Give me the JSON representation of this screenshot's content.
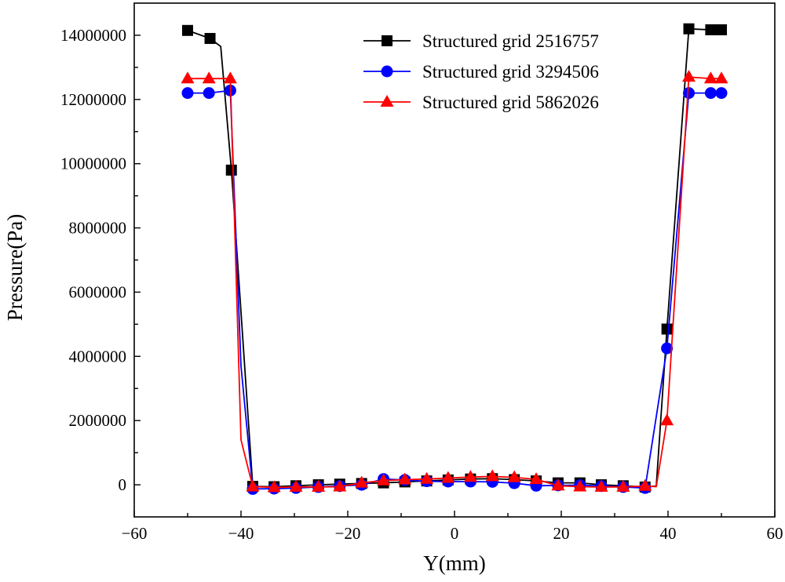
{
  "chart_data": {
    "type": "line",
    "title": "",
    "xlabel": "Y(mm)",
    "ylabel": "Pressure(Pa)",
    "xlim": [
      -60,
      60
    ],
    "ylim": [
      -1000000,
      15000000
    ],
    "xticks": [
      -60,
      -40,
      -20,
      0,
      20,
      40,
      60
    ],
    "xtick_labels": [
      "−60",
      "−40",
      "−20",
      "0",
      "20",
      "40",
      "60"
    ],
    "yticks": [
      0,
      2000000,
      4000000,
      6000000,
      8000000,
      10000000,
      12000000,
      14000000
    ],
    "ytick_labels": [
      "0",
      "2000000",
      "4000000",
      "6000000",
      "8000000",
      "10000000",
      "12000000",
      "14000000"
    ],
    "grid": false,
    "legend_position": "top-right",
    "series": [
      {
        "name": "Structured grid 2516757",
        "color": "#000000",
        "marker": "square",
        "markers": [
          {
            "x": -50,
            "y": 14150000
          },
          {
            "x": -45.8,
            "y": 13900000
          },
          {
            "x": -41.8,
            "y": 9800000
          },
          {
            "x": -37.8,
            "y": -50000
          },
          {
            "x": -33.8,
            "y": -60000
          },
          {
            "x": -29.7,
            "y": -30000
          },
          {
            "x": -25.5,
            "y": 0
          },
          {
            "x": -21.5,
            "y": 20000
          },
          {
            "x": -17.4,
            "y": 40000
          },
          {
            "x": -13.3,
            "y": 60000
          },
          {
            "x": -9.3,
            "y": 90000
          },
          {
            "x": -5.2,
            "y": 120000
          },
          {
            "x": -1.2,
            "y": 150000
          },
          {
            "x": 3,
            "y": 180000
          },
          {
            "x": 7.1,
            "y": 190000
          },
          {
            "x": 11.2,
            "y": 160000
          },
          {
            "x": 15.3,
            "y": 120000
          },
          {
            "x": 19.4,
            "y": 60000
          },
          {
            "x": 23.5,
            "y": 60000
          },
          {
            "x": 27.5,
            "y": 0
          },
          {
            "x": 31.6,
            "y": -30000
          },
          {
            "x": 35.7,
            "y": -70000
          },
          {
            "x": 39.8,
            "y": 4850000
          },
          {
            "x": 43.9,
            "y": 14200000
          },
          {
            "x": 48,
            "y": 14170000
          },
          {
            "x": 50,
            "y": 14170000
          }
        ],
        "line": [
          {
            "x": -50,
            "y": 14150000
          },
          {
            "x": -45.8,
            "y": 13900000
          },
          {
            "x": -43.8,
            "y": 13650000
          },
          {
            "x": -41.8,
            "y": 9800000
          },
          {
            "x": -37.8,
            "y": -50000
          },
          {
            "x": -33.8,
            "y": -60000
          },
          {
            "x": -29.7,
            "y": -30000
          },
          {
            "x": -25.5,
            "y": 0
          },
          {
            "x": -21.5,
            "y": 20000
          },
          {
            "x": -17.4,
            "y": 40000
          },
          {
            "x": -13.3,
            "y": 60000
          },
          {
            "x": -9.3,
            "y": 90000
          },
          {
            "x": -5.2,
            "y": 120000
          },
          {
            "x": -1.2,
            "y": 150000
          },
          {
            "x": 3,
            "y": 180000
          },
          {
            "x": 7.1,
            "y": 190000
          },
          {
            "x": 11.2,
            "y": 160000
          },
          {
            "x": 15.3,
            "y": 120000
          },
          {
            "x": 19.4,
            "y": 60000
          },
          {
            "x": 23.5,
            "y": 60000
          },
          {
            "x": 27.5,
            "y": 0
          },
          {
            "x": 31.6,
            "y": -30000
          },
          {
            "x": 35.7,
            "y": -70000
          },
          {
            "x": 37.8,
            "y": -40000
          },
          {
            "x": 39.8,
            "y": 4850000
          },
          {
            "x": 43.9,
            "y": 14200000
          },
          {
            "x": 48,
            "y": 14170000
          },
          {
            "x": 50,
            "y": 14170000
          }
        ]
      },
      {
        "name": "Structured grid 3294506",
        "color": "#0000ff",
        "marker": "circle",
        "markers": [
          {
            "x": -50,
            "y": 12200000
          },
          {
            "x": -46,
            "y": 12200000
          },
          {
            "x": -42,
            "y": 12280000
          },
          {
            "x": -37.8,
            "y": -130000
          },
          {
            "x": -33.8,
            "y": -120000
          },
          {
            "x": -29.7,
            "y": -100000
          },
          {
            "x": -25.5,
            "y": -70000
          },
          {
            "x": -21.5,
            "y": -40000
          },
          {
            "x": -17.4,
            "y": 0
          },
          {
            "x": -13.3,
            "y": 180000
          },
          {
            "x": -9.3,
            "y": 150000
          },
          {
            "x": -5.2,
            "y": 110000
          },
          {
            "x": -1.2,
            "y": 100000
          },
          {
            "x": 3,
            "y": 100000
          },
          {
            "x": 7.1,
            "y": 90000
          },
          {
            "x": 11.2,
            "y": 50000
          },
          {
            "x": 15.3,
            "y": -30000
          },
          {
            "x": 19.4,
            "y": -20000
          },
          {
            "x": 23.5,
            "y": -10000
          },
          {
            "x": 27.5,
            "y": -40000
          },
          {
            "x": 31.6,
            "y": -70000
          },
          {
            "x": 35.7,
            "y": -100000
          },
          {
            "x": 39.8,
            "y": 4250000
          },
          {
            "x": 43.9,
            "y": 12200000
          },
          {
            "x": 48,
            "y": 12200000
          },
          {
            "x": 50,
            "y": 12200000
          }
        ],
        "line": [
          {
            "x": -50,
            "y": 12200000
          },
          {
            "x": -46,
            "y": 12200000
          },
          {
            "x": -42,
            "y": 12280000
          },
          {
            "x": -40,
            "y": 3700000
          },
          {
            "x": -37.8,
            "y": -130000
          },
          {
            "x": -33.8,
            "y": -120000
          },
          {
            "x": -29.7,
            "y": -100000
          },
          {
            "x": -25.5,
            "y": -70000
          },
          {
            "x": -21.5,
            "y": -40000
          },
          {
            "x": -17.4,
            "y": 0
          },
          {
            "x": -13.3,
            "y": 180000
          },
          {
            "x": -9.3,
            "y": 150000
          },
          {
            "x": -5.2,
            "y": 110000
          },
          {
            "x": -1.2,
            "y": 100000
          },
          {
            "x": 3,
            "y": 100000
          },
          {
            "x": 7.1,
            "y": 90000
          },
          {
            "x": 11.2,
            "y": 50000
          },
          {
            "x": 15.3,
            "y": -30000
          },
          {
            "x": 19.4,
            "y": -20000
          },
          {
            "x": 23.5,
            "y": -10000
          },
          {
            "x": 27.5,
            "y": -40000
          },
          {
            "x": 31.6,
            "y": -70000
          },
          {
            "x": 35.7,
            "y": -100000
          },
          {
            "x": 39.8,
            "y": 4250000
          },
          {
            "x": 43.9,
            "y": 12200000
          },
          {
            "x": 48,
            "y": 12200000
          },
          {
            "x": 50,
            "y": 12200000
          }
        ]
      },
      {
        "name": "Structured grid 5862026",
        "color": "#ff0000",
        "marker": "triangle",
        "markers": [
          {
            "x": -50,
            "y": 12650000
          },
          {
            "x": -46,
            "y": 12650000
          },
          {
            "x": -42,
            "y": 12650000
          },
          {
            "x": -37.8,
            "y": -60000
          },
          {
            "x": -33.8,
            "y": -80000
          },
          {
            "x": -29.7,
            "y": -70000
          },
          {
            "x": -25.5,
            "y": -70000
          },
          {
            "x": -21.5,
            "y": -60000
          },
          {
            "x": -17.4,
            "y": 60000
          },
          {
            "x": -13.3,
            "y": 130000
          },
          {
            "x": -9.3,
            "y": 160000
          },
          {
            "x": -5.2,
            "y": 180000
          },
          {
            "x": -1.2,
            "y": 210000
          },
          {
            "x": 3,
            "y": 240000
          },
          {
            "x": 7.1,
            "y": 260000
          },
          {
            "x": 11.2,
            "y": 230000
          },
          {
            "x": 15.3,
            "y": 170000
          },
          {
            "x": 19.4,
            "y": -30000
          },
          {
            "x": 23.5,
            "y": -60000
          },
          {
            "x": 27.5,
            "y": -70000
          },
          {
            "x": 31.6,
            "y": -70000
          },
          {
            "x": 35.7,
            "y": -40000
          },
          {
            "x": 39.8,
            "y": 2000000
          },
          {
            "x": 43.9,
            "y": 12700000
          },
          {
            "x": 48,
            "y": 12650000
          },
          {
            "x": 50,
            "y": 12650000
          }
        ],
        "line": [
          {
            "x": -50,
            "y": 12650000
          },
          {
            "x": -46,
            "y": 12650000
          },
          {
            "x": -42,
            "y": 12650000
          },
          {
            "x": -40,
            "y": 1400000
          },
          {
            "x": -37.8,
            "y": -60000
          },
          {
            "x": -33.8,
            "y": -80000
          },
          {
            "x": -29.7,
            "y": -70000
          },
          {
            "x": -25.5,
            "y": -70000
          },
          {
            "x": -21.5,
            "y": -60000
          },
          {
            "x": -17.4,
            "y": 60000
          },
          {
            "x": -13.3,
            "y": 130000
          },
          {
            "x": -9.3,
            "y": 160000
          },
          {
            "x": -5.2,
            "y": 180000
          },
          {
            "x": -1.2,
            "y": 210000
          },
          {
            "x": 3,
            "y": 240000
          },
          {
            "x": 7.1,
            "y": 260000
          },
          {
            "x": 11.2,
            "y": 230000
          },
          {
            "x": 15.3,
            "y": 170000
          },
          {
            "x": 19.4,
            "y": -30000
          },
          {
            "x": 23.5,
            "y": -60000
          },
          {
            "x": 27.5,
            "y": -70000
          },
          {
            "x": 31.6,
            "y": -70000
          },
          {
            "x": 35.7,
            "y": -40000
          },
          {
            "x": 37.8,
            "y": -60000
          },
          {
            "x": 39.8,
            "y": 2000000
          },
          {
            "x": 43.9,
            "y": 12700000
          },
          {
            "x": 48,
            "y": 12650000
          },
          {
            "x": 50,
            "y": 12650000
          }
        ]
      }
    ]
  }
}
